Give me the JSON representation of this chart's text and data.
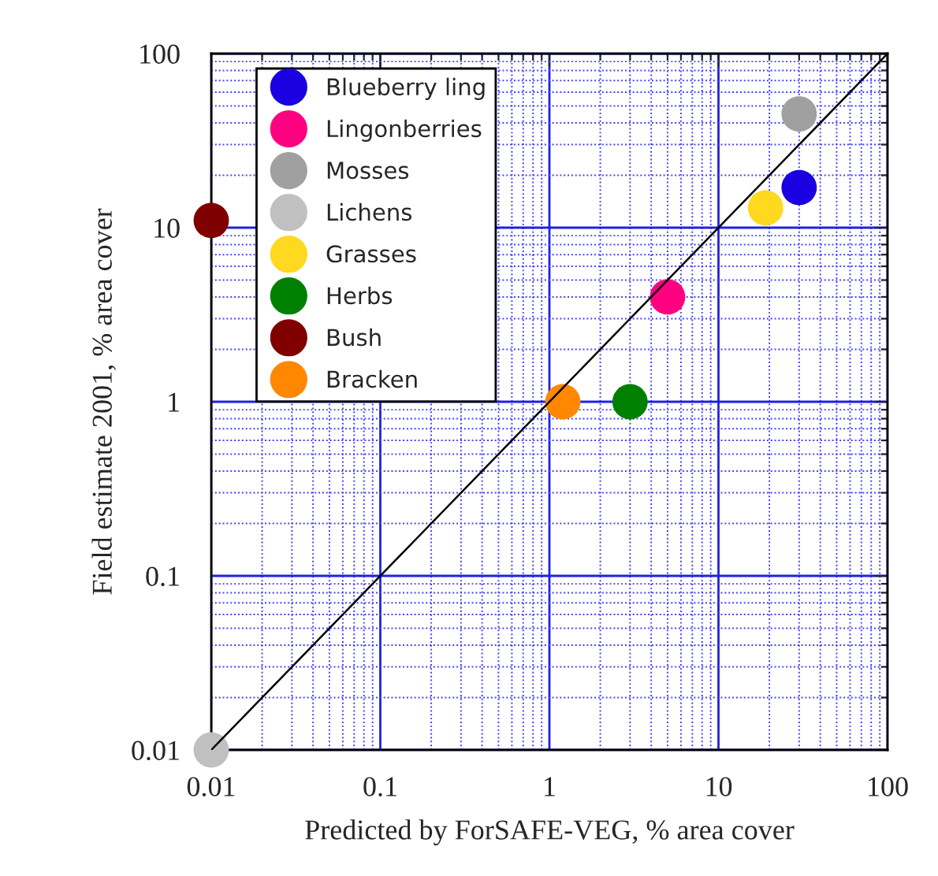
{
  "chart_data": {
    "type": "scatter",
    "xlabel": "Predicted by ForSAFE-VEG, % area cover",
    "ylabel": "Field estimate 2001, % area cover",
    "log": "xy",
    "grid": true,
    "legend": "top left",
    "xlim": [
      0.01,
      100
    ],
    "ylim": [
      0.01,
      100
    ],
    "xticks": [
      0.01,
      {
        "value": 0.02,
        "label": null
      },
      {
        "value": 0.03,
        "label": null
      },
      {
        "value": 0.04,
        "label": null
      },
      {
        "value": 0.05,
        "label": null
      },
      {
        "value": 0.06,
        "label": null
      },
      {
        "value": 0.07,
        "label": null
      },
      {
        "value": 0.08,
        "label": null
      },
      {
        "value": 0.09,
        "label": null
      },
      0.1,
      {
        "value": 0.2,
        "label": null
      },
      {
        "value": 0.3,
        "label": null
      },
      {
        "value": 0.4,
        "label": null
      },
      {
        "value": 0.5,
        "label": null
      },
      {
        "value": 0.6,
        "label": null
      },
      {
        "value": 0.7,
        "label": null
      },
      {
        "value": 0.8,
        "label": null
      },
      {
        "value": 0.9,
        "label": null
      },
      1,
      {
        "value": 2,
        "label": null
      },
      {
        "value": 3,
        "label": null
      },
      {
        "value": 4,
        "label": null
      },
      {
        "value": 5,
        "label": null
      },
      {
        "value": 6,
        "label": null
      },
      {
        "value": 7,
        "label": null
      },
      {
        "value": 8,
        "label": null
      },
      {
        "value": 9,
        "label": null
      },
      10,
      {
        "value": 20,
        "label": null
      },
      {
        "value": 30,
        "label": null
      },
      {
        "value": 40,
        "label": null
      },
      {
        "value": 50,
        "label": null
      },
      {
        "value": 60,
        "label": null
      },
      {
        "value": 70,
        "label": null
      },
      {
        "value": 80,
        "label": null
      },
      {
        "value": 90,
        "label": null
      },
      100
    ],
    "yticks": [
      0.01,
      {
        "value": 0.02,
        "label": null
      },
      {
        "value": 0.03,
        "label": null
      },
      {
        "value": 0.04,
        "label": null
      },
      {
        "value": 0.05,
        "label": null
      },
      {
        "value": 0.06,
        "label": null
      },
      {
        "value": 0.07,
        "label": null
      },
      {
        "value": 0.08,
        "label": null
      },
      {
        "value": 0.09,
        "label": null
      },
      0.1,
      {
        "value": 0.2,
        "label": null
      },
      {
        "value": 0.3,
        "label": null
      },
      {
        "value": 0.4,
        "label": null
      },
      {
        "value": 0.5,
        "label": null
      },
      {
        "value": 0.6,
        "label": null
      },
      {
        "value": 0.7,
        "label": null
      },
      {
        "value": 0.8,
        "label": null
      },
      {
        "value": 0.9,
        "label": null
      },
      1,
      {
        "value": 2,
        "label": null
      },
      {
        "value": 3,
        "label": null
      },
      {
        "value": 4,
        "label": null
      },
      {
        "value": 5,
        "label": null
      },
      {
        "value": 6,
        "label": null
      },
      {
        "value": 7,
        "label": null
      },
      {
        "value": 8,
        "label": null
      },
      {
        "value": 9,
        "label": null
      },
      10,
      {
        "value": 20,
        "label": null
      },
      {
        "value": 30,
        "label": null
      },
      {
        "value": 40,
        "label": null
      },
      {
        "value": 50,
        "label": null
      },
      {
        "value": 60,
        "label": null
      },
      {
        "value": 70,
        "label": null
      },
      {
        "value": 80,
        "label": null
      },
      {
        "value": 90,
        "label": null
      },
      100
    ],
    "series": [
      {
        "name": "Blueberry ling",
        "color": "#1a00e0",
        "marker": "circle",
        "x": [
          30
        ],
        "values": [
          17
        ]
      },
      {
        "name": "Lingonberries",
        "color": "#ff0080",
        "marker": "circle",
        "x": [
          5
        ],
        "values": [
          4
        ]
      },
      {
        "name": "Mosses",
        "color": "#a0a0a0",
        "marker": "circle",
        "x": [
          30
        ],
        "values": [
          45
        ]
      },
      {
        "name": "Lichens",
        "color": "#c0c0c0",
        "marker": "circle",
        "x": [
          0.01
        ],
        "values": [
          0.01
        ]
      },
      {
        "name": "Grasses",
        "color": "#ffd820",
        "marker": "circle",
        "x": [
          19
        ],
        "values": [
          13
        ]
      },
      {
        "name": "Herbs",
        "color": "#008000",
        "marker": "circle",
        "x": [
          3
        ],
        "values": [
          1
        ]
      },
      {
        "name": "Bush",
        "color": "#800000",
        "marker": "circle",
        "x": [
          0.01
        ],
        "values": [
          11
        ]
      },
      {
        "name": "Bracken",
        "color": "#ff8800",
        "marker": "circle",
        "x": [
          1.2
        ],
        "values": [
          1
        ]
      },
      {
        "type": "line",
        "color": "#000000",
        "marker": "none",
        "x": [
          0.01,
          100
        ],
        "values": [
          0.01,
          100
        ]
      }
    ]
  }
}
